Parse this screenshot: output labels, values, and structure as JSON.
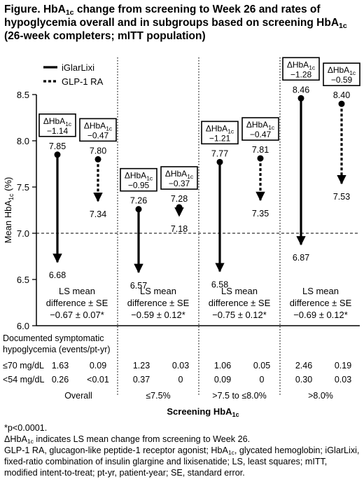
{
  "title": {
    "pre": "Figure. HbA",
    "sub1": "1c",
    "mid": " change from screening to Week 26 and rates of hypoglycemia overall and in subgroups based on screening HbA",
    "sub2": "1c",
    "post": " (26-week completers; mITT population)"
  },
  "legend": [
    {
      "label": "iGlarLixi",
      "style": "solid"
    },
    {
      "label": "GLP-1 RA",
      "style": "dashed"
    }
  ],
  "colors": {
    "arrow": "#000000",
    "background": "#ffffff"
  },
  "chart_data": {
    "type": "arrow-range",
    "ylabel": {
      "pre": "Mean HbA",
      "sub": "1c",
      "post": " (%)"
    },
    "xlabel": {
      "pre": "Screening HbA",
      "sub": "1c"
    },
    "ylim": [
      6.0,
      8.5
    ],
    "yticks": [
      "6.0",
      "6.5",
      "7.0",
      "7.5",
      "8.0",
      "8.5"
    ],
    "reference_line": 7.0,
    "legend_position": "top-left",
    "groups": [
      {
        "name": "Overall",
        "iglarlixi": {
          "start": 7.85,
          "end": 6.68,
          "start_label": "7.85",
          "end_label": "6.68",
          "delta_pre": "ΔHbA",
          "delta_sub": "1c",
          "delta": "−1.14"
        },
        "glp1ra": {
          "start": 7.8,
          "end": 7.34,
          "start_label": "7.80",
          "end_label": "7.34",
          "delta_pre": "ΔHbA",
          "delta_sub": "1c",
          "delta": "−0.47"
        },
        "ls_line1": "LS mean",
        "ls_line2": "difference ± SE",
        "ls_value": "−0.67 ± 0.07*",
        "hypo70": [
          "1.63",
          "0.09"
        ],
        "hypo54": [
          "0.26",
          "<0.01"
        ]
      },
      {
        "name": "≤7.5%",
        "iglarlixi": {
          "start": 7.26,
          "end": 6.57,
          "start_label": "7.26",
          "end_label": "6.57",
          "delta_pre": "ΔHbA",
          "delta_sub": "1c",
          "delta": "−0.95"
        },
        "glp1ra": {
          "start": 7.28,
          "end": 7.18,
          "start_label": "7.28",
          "end_label": "7.18",
          "delta_pre": "ΔHbA",
          "delta_sub": "1c",
          "delta": "−0.37"
        },
        "ls_line1": "LS mean",
        "ls_line2": "difference ± SE",
        "ls_value": "−0.59 ± 0.12*",
        "hypo70": [
          "1.23",
          "0.03"
        ],
        "hypo54": [
          "0.37",
          "0"
        ]
      },
      {
        "name": ">7.5 to ≤8.0%",
        "iglarlixi": {
          "start": 7.77,
          "end": 6.58,
          "start_label": "7.77",
          "end_label": "6.58",
          "delta_pre": "ΔHbA",
          "delta_sub": "1c",
          "delta": "−1.21"
        },
        "glp1ra": {
          "start": 7.81,
          "end": 7.35,
          "start_label": "7.81",
          "end_label": "7.35",
          "delta_pre": "ΔHbA",
          "delta_sub": "1c",
          "delta": "−0.47"
        },
        "ls_line1": "LS mean",
        "ls_line2": "difference ± SE",
        "ls_value": "−0.75 ± 0.12*",
        "hypo70": [
          "1.06",
          "0.05"
        ],
        "hypo54": [
          "0.09",
          "0"
        ]
      },
      {
        "name": ">8.0%",
        "iglarlixi": {
          "start": 8.46,
          "end": 6.87,
          "start_label": "8.46",
          "end_label": "6.87",
          "delta_pre": "ΔHbA",
          "delta_sub": "1c",
          "delta": "−1.28"
        },
        "glp1ra": {
          "start": 8.4,
          "end": 7.53,
          "start_label": "8.40",
          "end_label": "7.53",
          "delta_pre": "ΔHbA",
          "delta_sub": "1c",
          "delta": "−0.59"
        },
        "ls_line1": "LS mean",
        "ls_line2": "difference ± SE",
        "ls_value": "−0.69 ± 0.12*",
        "hypo70": [
          "2.46",
          "0.19"
        ],
        "hypo54": [
          "0.30",
          "0.03"
        ]
      }
    ]
  },
  "table": {
    "header_line1": "Documented symptomatic",
    "header_line2": "hypoglycemia (events/pt-yr)",
    "row70_label": "≤70 mg/dL",
    "row54_label": "<54 mg/dL"
  },
  "footnotes": {
    "p": "*p<0.0001.",
    "delta_pre": "ΔHbA",
    "delta_sub": "1c",
    "delta_post": " indicates LS mean change from screening to Week 26.",
    "abbrev_pre": "GLP-1 RA, glucagon-like peptide-1 receptor agonist; HbA",
    "abbrev_sub": "1c",
    "abbrev_post": ", glycated hemoglobin; iGlarLixi, fixed-ratio combination of insulin glargine and lixisenatide; LS, least squares; mITT, modified intent-to-treat; pt-yr, patient-year; SE, standard error."
  }
}
